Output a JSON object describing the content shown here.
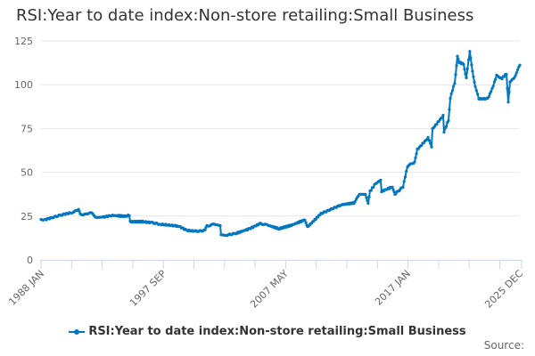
{
  "chart_data": {
    "type": "line",
    "title": "RSI:Year to date index:Non-store retailing:Small Business",
    "xlabel": "",
    "ylabel": "",
    "ylim": [
      0,
      125
    ],
    "xlim": [
      1988.0,
      2025.92
    ],
    "y_ticks": [
      0,
      25,
      50,
      75,
      100,
      125
    ],
    "x_tick_labels": [
      {
        "label": "1988 JAN",
        "x": 1988.0
      },
      {
        "label": "1997 SEP",
        "x": 1997.67
      },
      {
        "label": "2007 MAY",
        "x": 2007.33
      },
      {
        "label": "2017 JAN",
        "x": 2017.0
      },
      {
        "label": "2025 DEC",
        "x": 2025.92
      }
    ],
    "grid": true,
    "legend": {
      "position": "bottom-center",
      "entries": [
        "RSI:Year to date index:Non-store retailing:Small Business"
      ]
    },
    "series": [
      {
        "name": "RSI:Year to date index:Non-store retailing:Small Business",
        "color": "#0077c0",
        "x": [
          1988.0,
          1988.28,
          1988.99,
          1989.69,
          1990.4,
          1990.97,
          1991.11,
          1991.67,
          1991.95,
          1992.38,
          1992.87,
          1993.58,
          1994.64,
          1994.99,
          1995.06,
          1996.05,
          1996.76,
          1997.46,
          1998.87,
          1999.58,
          2000.29,
          2000.99,
          2001.13,
          2001.7,
          2002.19,
          2002.26,
          2002.76,
          2003.46,
          2004.52,
          2005.37,
          2005.94,
          2006.85,
          2007.84,
          2008.9,
          2009.11,
          2010.17,
          2011.8,
          2012.78,
          2013.21,
          2013.7,
          2013.91,
          2014.06,
          2014.41,
          2014.9,
          2014.97,
          2015.82,
          2016.03,
          2016.67,
          2017.02,
          2017.59,
          2017.8,
          2018.65,
          2018.93,
          2019.0,
          2019.85,
          2019.92,
          2020.27,
          2020.41,
          2020.76,
          2020.98,
          2021.12,
          2021.47,
          2021.68,
          2021.96,
          2022.17,
          2022.39,
          2022.67,
          2023.38,
          2023.73,
          2024.08,
          2024.51,
          2024.86,
          2025.0,
          2025.14,
          2025.49,
          2025.92
        ],
        "values": [
          23.4,
          22.9,
          24.4,
          25.9,
          26.9,
          28.5,
          26.0,
          26.0,
          26.9,
          24.4,
          24.4,
          25.4,
          24.9,
          25.4,
          21.8,
          21.8,
          21.3,
          20.3,
          19.3,
          16.8,
          16.3,
          16.8,
          19.3,
          20.3,
          19.3,
          14.7,
          14.2,
          15.2,
          17.8,
          20.8,
          19.8,
          17.8,
          19.8,
          22.9,
          18.8,
          26.4,
          31.5,
          32.5,
          37.1,
          37.1,
          32.0,
          39.1,
          42.7,
          45.2,
          39.1,
          41.7,
          37.6,
          41.7,
          53.4,
          55.9,
          63.0,
          69.6,
          64.5,
          74.7,
          82.3,
          73.2,
          79.8,
          92.5,
          101.1,
          116.3,
          112.8,
          111.8,
          103.7,
          119.4,
          107.7,
          98.6,
          92.0,
          92.0,
          97.6,
          105.2,
          103.7,
          106.2,
          90.4,
          101.6,
          104.2,
          111.2
        ]
      }
    ]
  },
  "source_label": "Source:"
}
